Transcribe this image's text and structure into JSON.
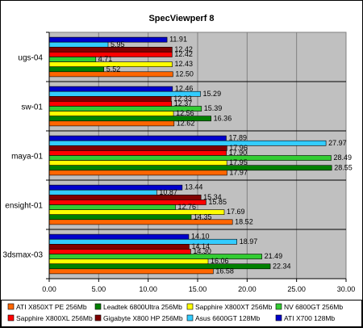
{
  "chart_data": {
    "type": "bar",
    "orientation": "horizontal",
    "title": "SpecViewperf 8",
    "xlabel": "",
    "ylabel": "",
    "xlim": [
      0,
      30
    ],
    "x_ticks": [
      "0.00",
      "5.00",
      "10.00",
      "15.00",
      "20.00",
      "25.00",
      "30.00"
    ],
    "grid": true,
    "legend_position": "bottom",
    "categories": [
      "ugs-04",
      "sw-01",
      "maya-01",
      "ensight-01",
      "3dsmax-03"
    ],
    "series": [
      {
        "name": "ATI X700 128Mb",
        "color": "#0000cc",
        "values": [
          11.91,
          12.46,
          17.89,
          13.44,
          14.1
        ]
      },
      {
        "name": "Asus 6600GT 128Mb",
        "color": "#33ccff",
        "values": [
          5.95,
          15.29,
          27.97,
          10.87,
          18.97
        ]
      },
      {
        "name": "Gigabyte X800 HP 256Mb",
        "color": "#800000",
        "values": [
          12.42,
          12.33,
          17.96,
          15.34,
          14.14
        ]
      },
      {
        "name": "Sapphire X800XL 256Mb",
        "color": "#ff0000",
        "values": [
          12.42,
          12.37,
          17.9,
          15.85,
          14.3
        ]
      },
      {
        "name": "NV 6800GT 256Mb",
        "color": "#33cc33",
        "values": [
          4.71,
          15.39,
          28.49,
          12.76,
          21.49
        ]
      },
      {
        "name": "Sapphire X800XT 256Mb",
        "color": "#ffff00",
        "values": [
          12.43,
          12.56,
          17.95,
          17.69,
          16.06
        ]
      },
      {
        "name": "Leadtek 6800Ultra 256Mb",
        "color": "#008000",
        "values": [
          5.52,
          16.36,
          28.55,
          14.35,
          22.34
        ]
      },
      {
        "name": "ATI X850XT PE 256Mb",
        "color": "#ff6600",
        "values": [
          12.5,
          12.62,
          17.97,
          18.52,
          16.58
        ]
      }
    ],
    "value_labels": [
      [
        "11.91",
        "12.46",
        "17.89",
        "13.44",
        "14.10"
      ],
      [
        "5.95",
        "15.29",
        "27.97",
        "10.87",
        "18.97"
      ],
      [
        "12.42",
        "12.33",
        "17.96",
        "15.34",
        "14.14"
      ],
      [
        "12.42",
        "12.37",
        "17.90",
        "15.85",
        "14.30"
      ],
      [
        "4.71",
        "15.39",
        "28.49",
        "12.76",
        "21.49"
      ],
      [
        "12.43",
        "12.56",
        "17.95",
        "17.69",
        "16.06"
      ],
      [
        "5.52",
        "16.36",
        "28.55",
        "14.35",
        "22.34"
      ],
      [
        "12.50",
        "12.62",
        "17.97",
        "18.52",
        "16.58"
      ]
    ],
    "legend_order": [
      "ATI X850XT PE 256Mb",
      "Leadtek 6800Ultra 256Mb",
      "Sapphire X800XT 256Mb",
      "NV 6800GT 256Mb",
      "Sapphire X800XL 256Mb",
      "Gigabyte X800 HP 256Mb",
      "Asus 6600GT 128Mb",
      "ATI X700 128Mb"
    ]
  }
}
